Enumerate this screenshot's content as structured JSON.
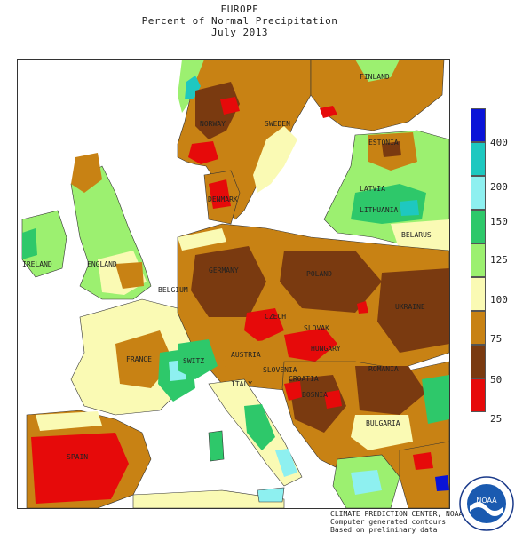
{
  "header": {
    "region": "EUROPE",
    "subtitle": "Percent of Normal Precipitation",
    "period": "July 2013"
  },
  "legend": {
    "labels": [
      "400",
      "200",
      "150",
      "125",
      "100",
      "75",
      "50",
      "25"
    ],
    "colors": [
      "#0a14d8",
      "#1ec8c0",
      "#8ef0f0",
      "#2ec86a",
      "#9cf070",
      "#fafab4",
      "#c88214",
      "#7a3a10",
      "#e60a0a"
    ]
  },
  "map": {
    "countries": [
      "FINLAND",
      "NORWAY",
      "SWEDEN",
      "ESTONIA",
      "LATVIA",
      "LITHUANIA",
      "BELARUS",
      "IRELAND",
      "ENGLAND",
      "GERMANY",
      "POLAND",
      "UKRAINE",
      "CZECH",
      "SLOVAK",
      "FRANCE",
      "SWITZ",
      "AUSTRIA",
      "ROMANIA",
      "HUNGARY",
      "CROATIA",
      "BOSNIA",
      "ITALY",
      "SLOVENIA",
      "BULGARIA",
      "SPAIN",
      "DENMARK",
      "BELGIUM"
    ],
    "colors": {
      "sea": "#ffffff",
      "very_dry": "#e60a0a",
      "dry": "#7a3a10",
      "below": "#c88214",
      "near": "#fafab4",
      "normal": "#9cf070",
      "above": "#2ec86a",
      "wet": "#8ef0f0",
      "very_wet": "#1ec8c0",
      "extreme": "#0a14d8"
    }
  },
  "credits": {
    "line1": "CLIMATE PREDICTION CENTER, NOAA",
    "line2": "Computer generated contours",
    "line3": "Based on preliminary data"
  },
  "logo": {
    "text": "NOAA",
    "ring_text": "NATIONAL OCEANIC AND ATMOSPHERIC ADMINISTRATION"
  }
}
